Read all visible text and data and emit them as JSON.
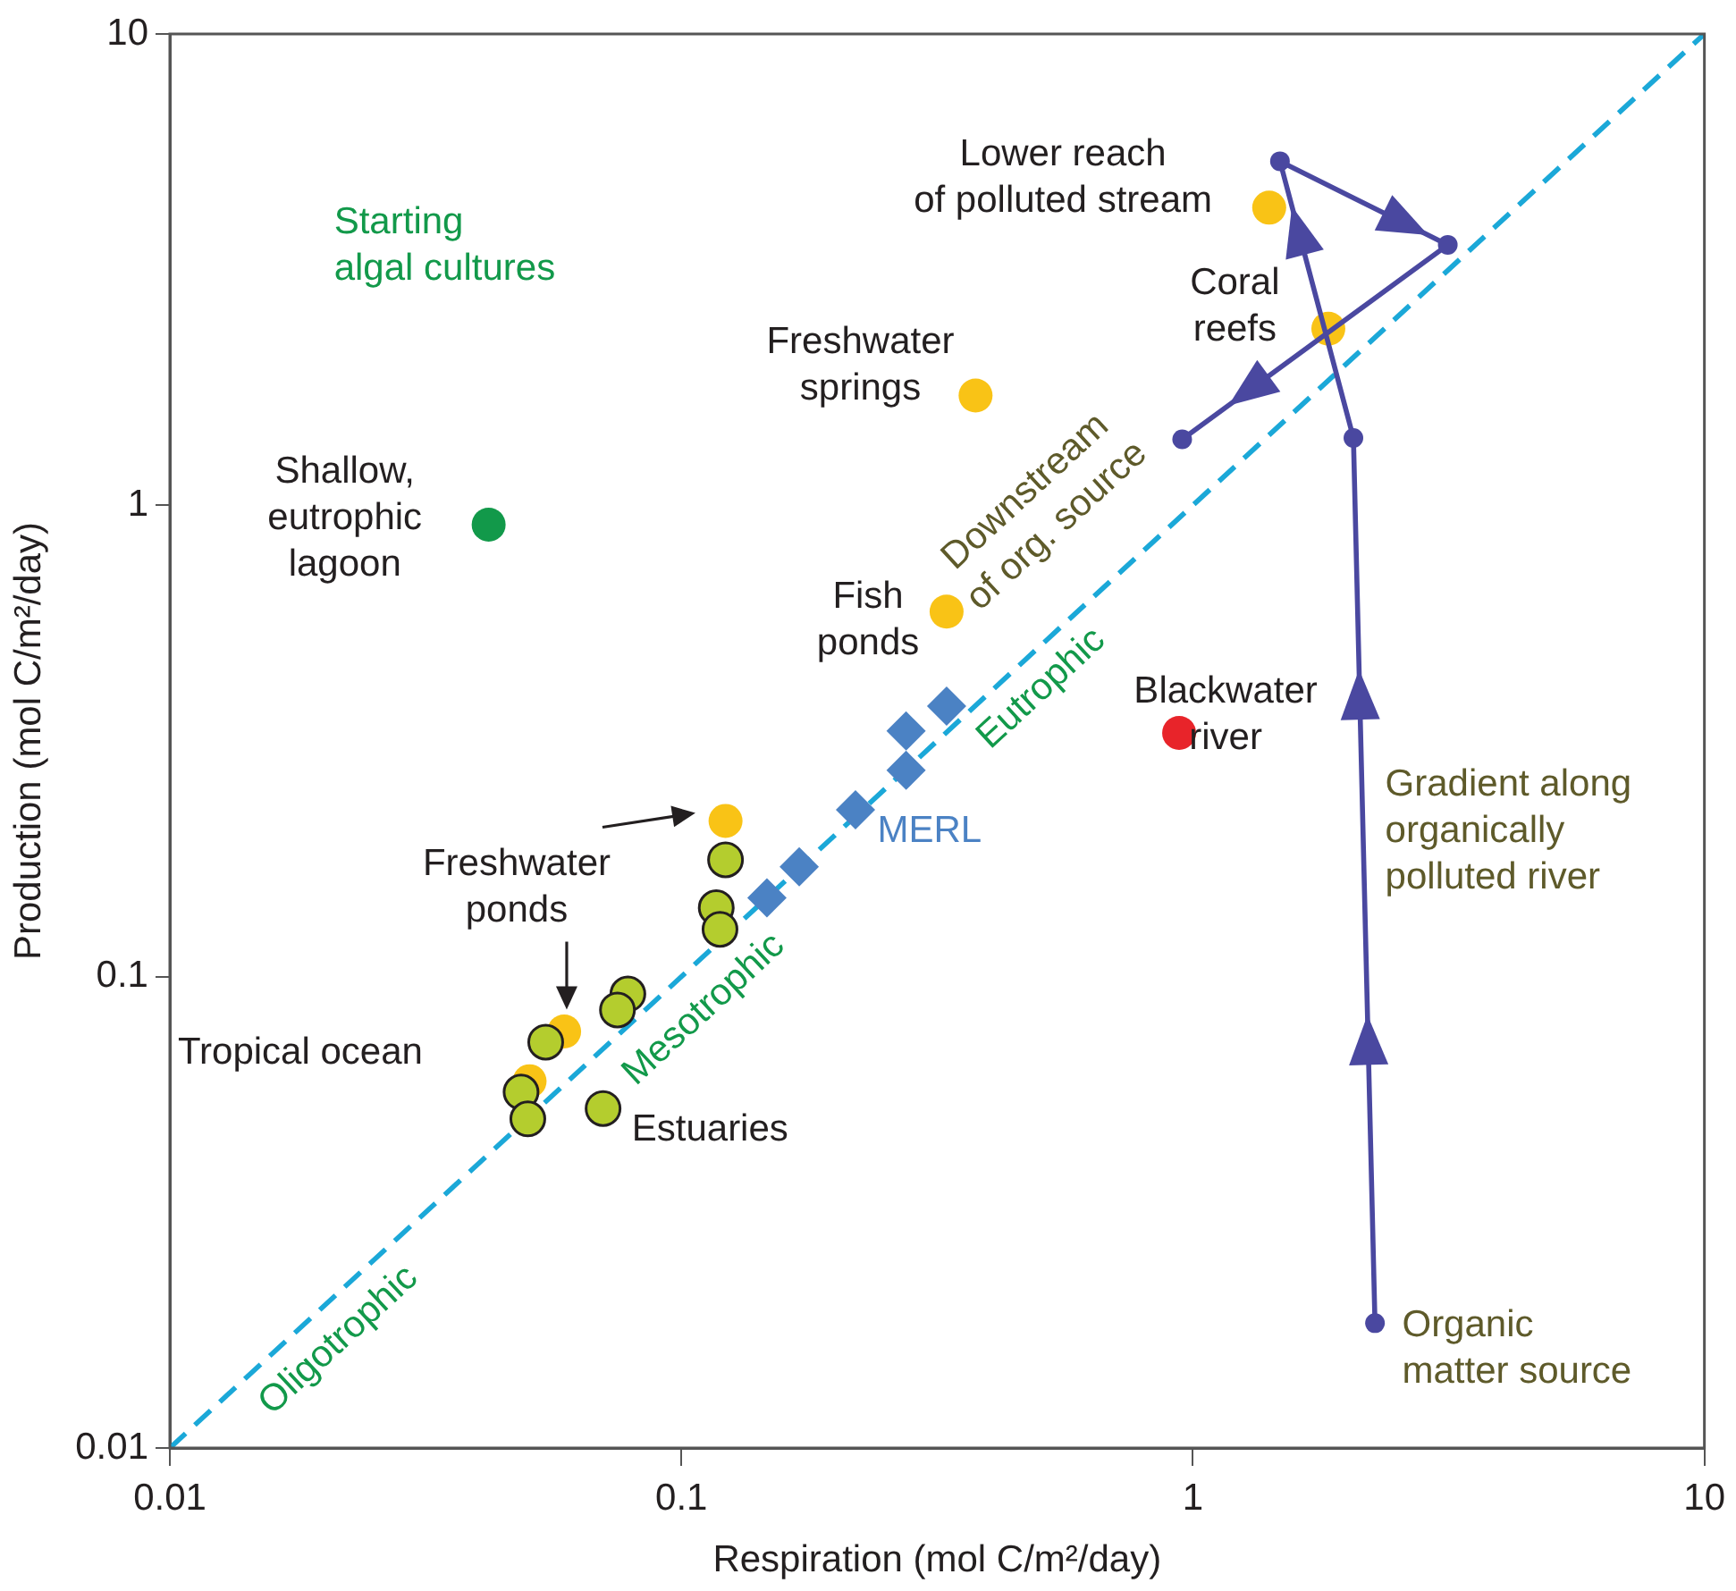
{
  "chart_data": {
    "type": "scatter",
    "xlabel": "Respiration (mol C/m²/day)",
    "ylabel": "Production (mol C/m²/day)",
    "log": "xy",
    "xlim": [
      0.01,
      10
    ],
    "ylim": [
      0.01,
      10
    ],
    "xticks": [
      0.01,
      0.1,
      1,
      10
    ],
    "yticks": [
      0.01,
      0.1,
      1,
      10
    ],
    "grid": false,
    "legend": false,
    "series": [
      {
        "type": "line",
        "color": "#1ba8d8",
        "line_style": "dashed",
        "marker": "none",
        "x": [
          0.01,
          10
        ],
        "values": [
          0.01,
          10
        ]
      },
      {
        "color": "#12994a",
        "marker": "circle",
        "x": [
          0.042
        ],
        "values": [
          0.91
        ]
      },
      {
        "color": "#f9c316",
        "marker": "circle",
        "x": [
          1.41,
          1.84,
          0.376,
          0.33,
          0.122,
          0.059,
          0.0505
        ],
        "values": [
          4.28,
          2.37,
          1.71,
          0.595,
          0.214,
          0.0765,
          0.06
        ]
      },
      {
        "color": "#e8242a",
        "marker": "circle",
        "x": [
          0.94
        ],
        "values": [
          0.329
        ]
      },
      {
        "color": "#b4cd2e",
        "marker": "circle",
        "x": [
          0.122,
          0.117,
          0.119,
          0.0786,
          0.075,
          0.0543,
          0.0486,
          0.0501,
          0.0703
        ],
        "values": [
          0.177,
          0.14,
          0.126,
          0.0919,
          0.085,
          0.0726,
          0.0569,
          0.0499,
          0.0525
        ]
      },
      {
        "color": "#4b82c4",
        "marker": "diamond",
        "x": [
          0.147,
          0.17,
          0.219,
          0.275,
          0.275,
          0.33
        ],
        "values": [
          0.147,
          0.171,
          0.226,
          0.274,
          0.332,
          0.375
        ]
      },
      {
        "type": "line",
        "color": "#4a48a0",
        "marker": "circle",
        "x": [
          2.27,
          2.06,
          1.48,
          3.15,
          0.953
        ],
        "values": [
          0.0184,
          1.39,
          5.37,
          3.57,
          1.38
        ]
      }
    ],
    "annotations": [
      "Starting\nalgal cultures",
      "Shallow,\neutrophic\nlagoon",
      "Lower reach\nof polluted stream",
      "Coral\nreefs",
      "Freshwater\nsprings",
      "Fish\nponds",
      "Blackwater\nriver",
      "Gradient along\norganically\npolluted river",
      "Organic\nmatter source",
      "MERL",
      "Freshwater\nponds",
      "Tropical ocean",
      "Estuaries",
      "Oligotrophic",
      "Mesotrophic",
      "Eutrophic",
      "Downstream\nof org. source"
    ]
  }
}
